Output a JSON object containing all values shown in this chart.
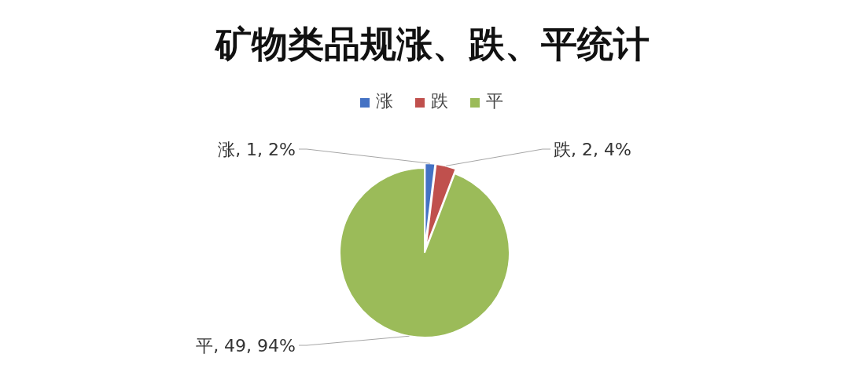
{
  "chart_data": {
    "type": "pie",
    "title": "矿物类品规涨、跌、平统计",
    "categories": [
      "涨",
      "跌",
      "平"
    ],
    "values": [
      1,
      2,
      49
    ],
    "colors": [
      "#4472c4",
      "#c0504d",
      "#9bbb59"
    ],
    "value_labels": [
      "涨, 1, 2%",
      "跌, 2, 4%",
      "平, 49, 94%"
    ],
    "legend": "top"
  }
}
